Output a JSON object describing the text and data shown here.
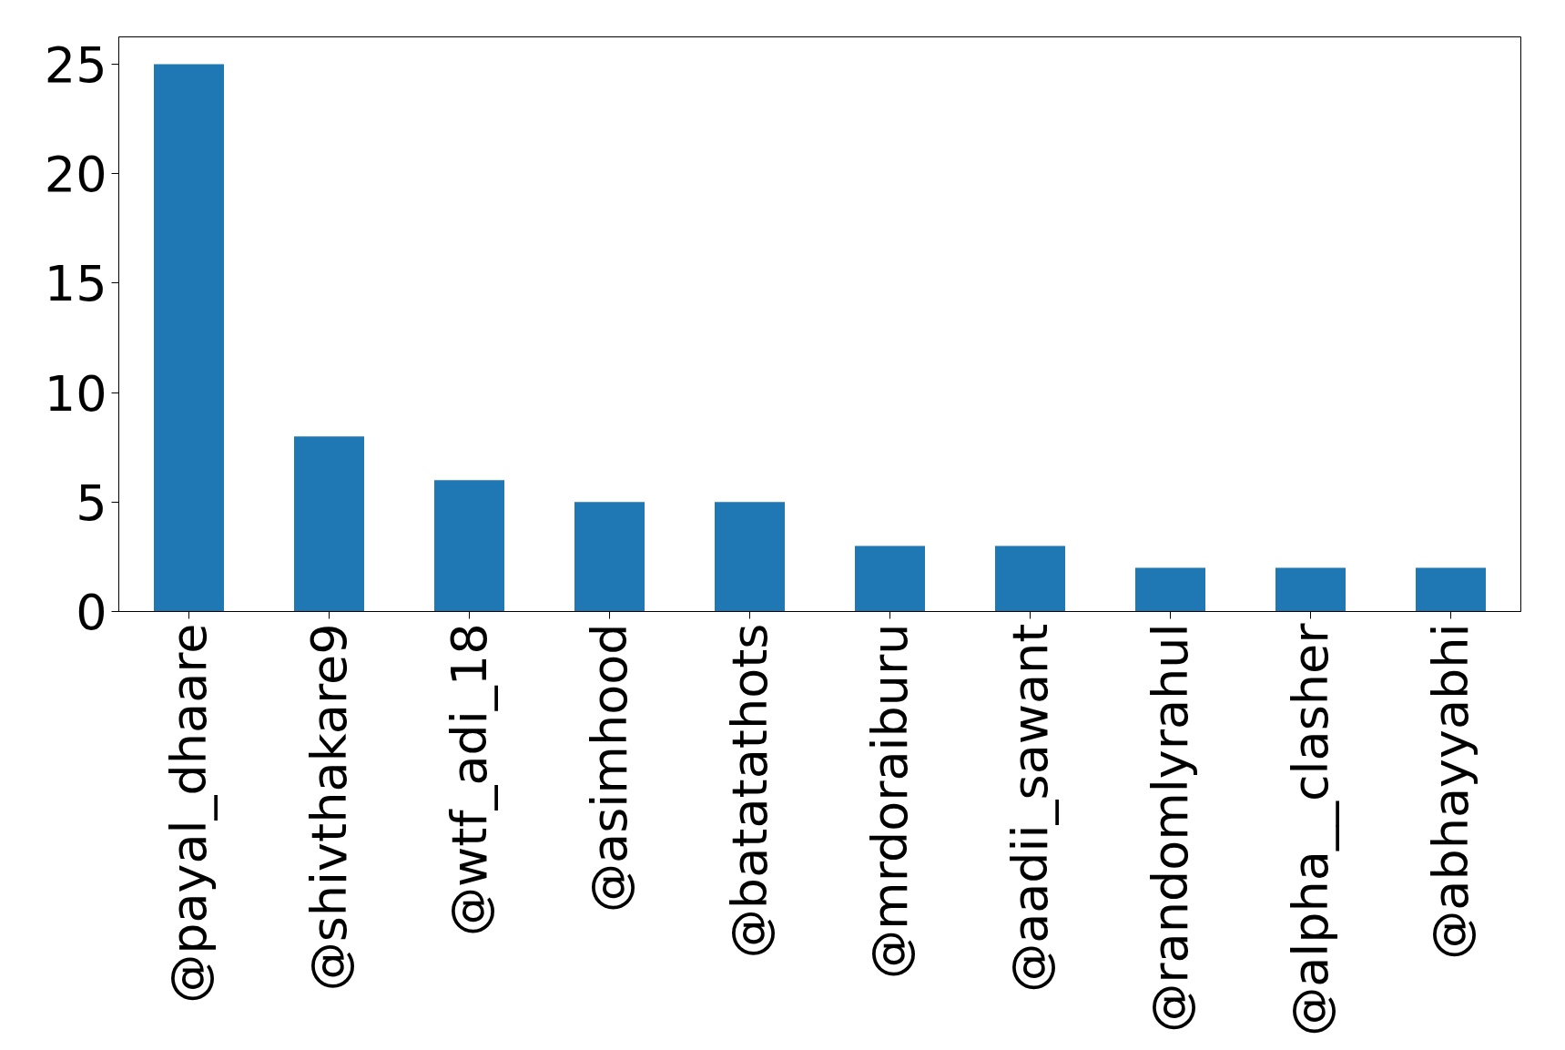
{
  "chart_data": {
    "type": "bar",
    "categories": [
      "@payal_dhaare",
      "@shivthakare9",
      "@wtf_adi_18",
      "@asimhood",
      "@batatathots",
      "@mrdoraiburu",
      "@aadii_sawant",
      "@randomlyrahul",
      "@alpha__clasher",
      "@abhayyabhi"
    ],
    "values": [
      25,
      8,
      6,
      5,
      5,
      3,
      3,
      2,
      2,
      2
    ],
    "color": "#1f77b4",
    "ylim": [
      0,
      26.25
    ],
    "yticks": [
      0,
      5,
      10,
      15,
      20,
      25
    ],
    "grid": false
  }
}
